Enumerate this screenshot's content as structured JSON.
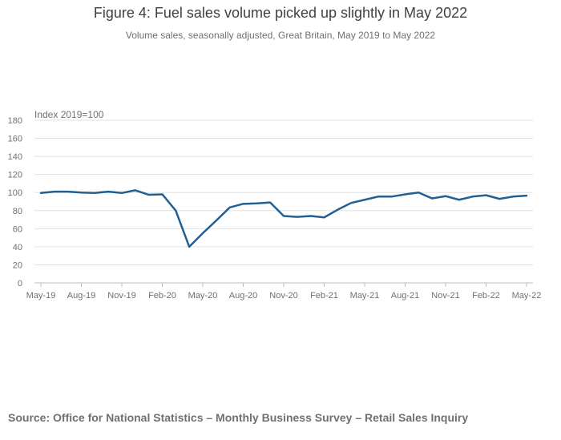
{
  "title": "Figure 4: Fuel sales volume picked up slightly in May 2022",
  "subtitle": "Volume sales, seasonally adjusted, Great Britain, May 2019 to May 2022",
  "source": "Source: Office for National Statistics – Monthly Business Survey – Retail Sales Inquiry",
  "colors": {
    "series": "#206095",
    "grid": "#e0e0e0",
    "axis": "#bebebe"
  },
  "chart_data": {
    "type": "line",
    "y_unit_label": "Index 2019=100",
    "ylim": [
      0,
      180
    ],
    "yticks": [
      0,
      20,
      40,
      60,
      80,
      100,
      120,
      140,
      160,
      180
    ],
    "grid": true,
    "x_tick_labels": [
      "May-19",
      "Aug-19",
      "Nov-19",
      "Feb-20",
      "May-20",
      "Aug-20",
      "Nov-20",
      "Feb-21",
      "May-21",
      "Aug-21",
      "Nov-21",
      "Feb-22",
      "May-22"
    ],
    "x": [
      "May-19",
      "Jun-19",
      "Jul-19",
      "Aug-19",
      "Sep-19",
      "Oct-19",
      "Nov-19",
      "Dec-19",
      "Jan-20",
      "Feb-20",
      "Mar-20",
      "Apr-20",
      "May-20",
      "Jun-20",
      "Jul-20",
      "Aug-20",
      "Sep-20",
      "Oct-20",
      "Nov-20",
      "Dec-20",
      "Jan-21",
      "Feb-21",
      "Mar-21",
      "Apr-21",
      "May-21",
      "Jun-21",
      "Jul-21",
      "Aug-21",
      "Sep-21",
      "Oct-21",
      "Nov-21",
      "Dec-21",
      "Jan-22",
      "Feb-22",
      "Mar-22",
      "Apr-22",
      "May-22"
    ],
    "series": [
      {
        "values": [
          99.5,
          101,
          101,
          100,
          99.5,
          101,
          99.5,
          102.5,
          97.5,
          98,
          80,
          40,
          55,
          69,
          83.5,
          87.5,
          88,
          89,
          74,
          73,
          74,
          72.5,
          81,
          88.5,
          92,
          95.5,
          95.5,
          98,
          100,
          93.5,
          96,
          92,
          95.5,
          97,
          93,
          95.5,
          96.5
        ]
      }
    ]
  }
}
